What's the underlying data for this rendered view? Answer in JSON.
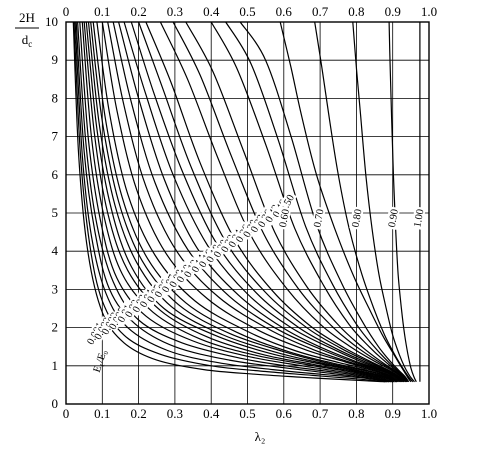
{
  "chart_data": {
    "type": "line",
    "title": "",
    "xlabel": "λ₂",
    "ylabel": "2H",
    "ylabel_denominator": "d_c",
    "xlim": [
      0,
      1.0
    ],
    "ylim": [
      0,
      10
    ],
    "grid": true,
    "x_ticks": [
      "0",
      "0.1",
      "0.2",
      "0.3",
      "0.4",
      "0.5",
      "0.6",
      "0.7",
      "0.8",
      "0.9",
      "1.0"
    ],
    "x_ticks_top": [
      "0",
      "0.1",
      "0.2",
      "0.3",
      "0.4",
      "0.5",
      "0.6",
      "0.7",
      "0.8",
      "0.9",
      "1.0"
    ],
    "y_ticks": [
      "0",
      "1",
      "2",
      "3",
      "4",
      "5",
      "6",
      "7",
      "8",
      "9",
      "10"
    ],
    "curve_parameter": "E₁/E₀",
    "series": [
      {
        "name": "0.001",
        "x": [
          0.02,
          0.035,
          0.06,
          0.1,
          0.16,
          0.25,
          0.38,
          0.52,
          0.65,
          0.78,
          0.88
        ],
        "y": [
          10,
          6.5,
          4.0,
          2.4,
          1.6,
          1.15,
          0.9,
          0.78,
          0.7,
          0.63,
          0.58
        ]
      },
      {
        "name": "0.002",
        "x": [
          0.022,
          0.04,
          0.065,
          0.1,
          0.16,
          0.26,
          0.4,
          0.55,
          0.68,
          0.8,
          0.885
        ],
        "y": [
          10,
          6.5,
          4.2,
          2.7,
          1.8,
          1.3,
          1.0,
          0.85,
          0.75,
          0.66,
          0.58
        ]
      },
      {
        "name": "0.003",
        "x": [
          0.025,
          0.045,
          0.07,
          0.11,
          0.17,
          0.28,
          0.42,
          0.57,
          0.7,
          0.82,
          0.89
        ],
        "y": [
          10,
          6.5,
          4.4,
          2.9,
          2.0,
          1.4,
          1.08,
          0.9,
          0.78,
          0.68,
          0.58
        ]
      },
      {
        "name": "0.005",
        "x": [
          0.028,
          0.05,
          0.08,
          0.12,
          0.19,
          0.3,
          0.45,
          0.6,
          0.73,
          0.84,
          0.895
        ],
        "y": [
          10,
          6.6,
          4.5,
          3.0,
          2.1,
          1.5,
          1.15,
          0.95,
          0.8,
          0.68,
          0.58
        ]
      },
      {
        "name": "0.01",
        "x": [
          0.032,
          0.055,
          0.085,
          0.13,
          0.2,
          0.32,
          0.48,
          0.62,
          0.75,
          0.85,
          0.9
        ],
        "y": [
          10,
          6.8,
          4.7,
          3.2,
          2.2,
          1.6,
          1.2,
          0.98,
          0.82,
          0.69,
          0.58
        ]
      },
      {
        "name": "0.02",
        "x": [
          0.038,
          0.062,
          0.095,
          0.14,
          0.22,
          0.35,
          0.5,
          0.65,
          0.77,
          0.86,
          0.9
        ],
        "y": [
          10,
          6.9,
          4.8,
          3.3,
          2.3,
          1.65,
          1.25,
          1.0,
          0.83,
          0.7,
          0.58
        ]
      },
      {
        "name": "0.03",
        "x": [
          0.045,
          0.07,
          0.105,
          0.155,
          0.24,
          0.37,
          0.52,
          0.67,
          0.78,
          0.87,
          0.905
        ],
        "y": [
          10,
          7.0,
          4.9,
          3.4,
          2.4,
          1.7,
          1.28,
          1.02,
          0.85,
          0.7,
          0.58
        ]
      },
      {
        "name": "0.04",
        "x": [
          0.05,
          0.078,
          0.115,
          0.17,
          0.26,
          0.39,
          0.54,
          0.68,
          0.79,
          0.875,
          0.905
        ],
        "y": [
          10,
          7.1,
          5.0,
          3.5,
          2.45,
          1.75,
          1.3,
          1.04,
          0.86,
          0.71,
          0.58
        ]
      },
      {
        "name": "0.05",
        "x": [
          0.056,
          0.085,
          0.125,
          0.18,
          0.27,
          0.41,
          0.56,
          0.7,
          0.8,
          0.88,
          0.91
        ],
        "y": [
          10,
          7.2,
          5.1,
          3.6,
          2.5,
          1.8,
          1.33,
          1.05,
          0.87,
          0.71,
          0.58
        ]
      },
      {
        "name": "0.06",
        "x": [
          0.062,
          0.092,
          0.135,
          0.195,
          0.29,
          0.43,
          0.58,
          0.71,
          0.81,
          0.885,
          0.91
        ],
        "y": [
          10,
          7.3,
          5.2,
          3.7,
          2.55,
          1.82,
          1.35,
          1.06,
          0.87,
          0.71,
          0.58
        ]
      },
      {
        "name": "0.07",
        "x": [
          0.068,
          0.1,
          0.145,
          0.21,
          0.31,
          0.45,
          0.6,
          0.72,
          0.82,
          0.89,
          0.91
        ],
        "y": [
          10,
          7.4,
          5.3,
          3.75,
          2.6,
          1.85,
          1.37,
          1.07,
          0.88,
          0.72,
          0.58
        ]
      },
      {
        "name": "0.08",
        "x": [
          0.075,
          0.108,
          0.155,
          0.225,
          0.33,
          0.47,
          0.61,
          0.73,
          0.83,
          0.89,
          0.912
        ],
        "y": [
          10,
          7.5,
          5.4,
          3.8,
          2.65,
          1.88,
          1.38,
          1.08,
          0.88,
          0.72,
          0.58
        ]
      },
      {
        "name": "0.10",
        "x": [
          0.085,
          0.12,
          0.17,
          0.245,
          0.355,
          0.5,
          0.63,
          0.75,
          0.84,
          0.895,
          0.915
        ],
        "y": [
          10,
          7.6,
          5.5,
          3.9,
          2.7,
          1.9,
          1.4,
          1.09,
          0.89,
          0.72,
          0.58
        ]
      },
      {
        "name": "0.12",
        "x": [
          0.1,
          0.14,
          0.195,
          0.275,
          0.39,
          0.53,
          0.66,
          0.77,
          0.85,
          0.9,
          0.918
        ],
        "y": [
          10,
          7.7,
          5.6,
          3.95,
          2.75,
          1.93,
          1.42,
          1.1,
          0.89,
          0.72,
          0.58
        ]
      },
      {
        "name": "0.14",
        "x": [
          0.115,
          0.16,
          0.22,
          0.305,
          0.42,
          0.56,
          0.68,
          0.78,
          0.86,
          0.905,
          0.92
        ],
        "y": [
          10,
          7.8,
          5.7,
          4.0,
          2.8,
          1.95,
          1.43,
          1.1,
          0.89,
          0.72,
          0.58
        ]
      },
      {
        "name": "0.16",
        "x": [
          0.13,
          0.18,
          0.245,
          0.335,
          0.45,
          0.58,
          0.7,
          0.79,
          0.865,
          0.907,
          0.922
        ],
        "y": [
          10,
          7.9,
          5.8,
          4.05,
          2.82,
          1.97,
          1.44,
          1.11,
          0.89,
          0.72,
          0.58
        ]
      },
      {
        "name": "0.18",
        "x": [
          0.145,
          0.2,
          0.27,
          0.36,
          0.475,
          0.6,
          0.71,
          0.8,
          0.87,
          0.91,
          0.924
        ],
        "y": [
          10,
          8.0,
          5.9,
          4.1,
          2.85,
          1.98,
          1.45,
          1.11,
          0.89,
          0.72,
          0.58
        ]
      },
      {
        "name": "0.20",
        "x": [
          0.16,
          0.22,
          0.295,
          0.39,
          0.5,
          0.62,
          0.73,
          0.81,
          0.875,
          0.912,
          0.926
        ],
        "y": [
          10,
          8.1,
          6.0,
          4.15,
          2.88,
          2.0,
          1.46,
          1.12,
          0.89,
          0.72,
          0.58
        ]
      },
      {
        "name": "0.22",
        "x": [
          0.18,
          0.24,
          0.32,
          0.415,
          0.525,
          0.64,
          0.74,
          0.82,
          0.88,
          0.914,
          0.928
        ],
        "y": [
          10,
          8.2,
          6.1,
          4.2,
          2.9,
          2.01,
          1.47,
          1.12,
          0.89,
          0.72,
          0.58
        ]
      },
      {
        "name": "0.24",
        "x": [
          0.2,
          0.265,
          0.345,
          0.44,
          0.55,
          0.66,
          0.755,
          0.83,
          0.885,
          0.916,
          0.93
        ],
        "y": [
          10,
          8.3,
          6.2,
          4.25,
          2.92,
          2.02,
          1.47,
          1.12,
          0.89,
          0.72,
          0.58
        ]
      },
      {
        "name": "0.26",
        "x": [
          0.22,
          0.29,
          0.37,
          0.465,
          0.57,
          0.675,
          0.765,
          0.835,
          0.888,
          0.918,
          0.932
        ],
        "y": [
          10,
          8.4,
          6.3,
          4.3,
          2.95,
          2.03,
          1.48,
          1.13,
          0.89,
          0.72,
          0.58
        ]
      },
      {
        "name": "0.30",
        "x": [
          0.26,
          0.335,
          0.42,
          0.51,
          0.61,
          0.705,
          0.785,
          0.848,
          0.895,
          0.922,
          0.935
        ],
        "y": [
          10,
          8.5,
          6.4,
          4.4,
          3.0,
          2.05,
          1.49,
          1.13,
          0.89,
          0.72,
          0.58
        ]
      },
      {
        "name": "0.33",
        "x": [
          0.295,
          0.37,
          0.455,
          0.545,
          0.64,
          0.73,
          0.8,
          0.857,
          0.9,
          0.925,
          0.937
        ],
        "y": [
          10,
          8.6,
          6.5,
          4.45,
          3.02,
          2.06,
          1.5,
          1.13,
          0.89,
          0.72,
          0.58
        ]
      },
      {
        "name": "0.36",
        "x": [
          0.33,
          0.405,
          0.49,
          0.575,
          0.665,
          0.75,
          0.815,
          0.865,
          0.903,
          0.927,
          0.938
        ],
        "y": [
          10,
          8.7,
          6.6,
          4.5,
          3.05,
          2.07,
          1.5,
          1.13,
          0.89,
          0.72,
          0.58
        ]
      },
      {
        "name": "0.42",
        "x": [
          0.4,
          0.47,
          0.55,
          0.63,
          0.71,
          0.78,
          0.835,
          0.877,
          0.908,
          0.93,
          0.94
        ],
        "y": [
          10,
          8.8,
          6.8,
          4.6,
          3.1,
          2.08,
          1.5,
          1.13,
          0.89,
          0.72,
          0.58
        ]
      },
      {
        "name": "0.46",
        "x": [
          0.44,
          0.51,
          0.585,
          0.66,
          0.735,
          0.8,
          0.848,
          0.885,
          0.912,
          0.932,
          0.942
        ],
        "y": [
          10,
          8.9,
          6.9,
          4.65,
          3.12,
          2.09,
          1.51,
          1.13,
          0.89,
          0.72,
          0.58
        ]
      },
      {
        "name": "0.50",
        "x": [
          0.48,
          0.55,
          0.62,
          0.69,
          0.76,
          0.82,
          0.86,
          0.892,
          0.916,
          0.934,
          0.944
        ],
        "y": [
          10,
          9.0,
          7.0,
          4.7,
          3.15,
          2.1,
          1.51,
          1.13,
          0.89,
          0.72,
          0.58
        ]
      },
      {
        "name": "0.60",
        "x": [
          0.59,
          0.62,
          0.65,
          0.69,
          0.74,
          0.79,
          0.835,
          0.872,
          0.903,
          0.925,
          0.94,
          0.95
        ],
        "y": [
          10,
          8.8,
          7.5,
          6.0,
          4.6,
          3.4,
          2.5,
          1.8,
          1.3,
          0.95,
          0.72,
          0.58
        ]
      },
      {
        "name": "0.70",
        "x": [
          0.685,
          0.705,
          0.725,
          0.75,
          0.78,
          0.815,
          0.848,
          0.878,
          0.905,
          0.927,
          0.943,
          0.955
        ],
        "y": [
          10,
          8.8,
          7.5,
          6.0,
          4.6,
          3.4,
          2.5,
          1.8,
          1.3,
          0.95,
          0.72,
          0.58
        ]
      },
      {
        "name": "0.80",
        "x": [
          0.79,
          0.8,
          0.812,
          0.826,
          0.843,
          0.862,
          0.882,
          0.9,
          0.918,
          0.934,
          0.948,
          0.96
        ],
        "y": [
          10,
          8.8,
          7.5,
          6.0,
          4.6,
          3.4,
          2.5,
          1.8,
          1.3,
          0.95,
          0.72,
          0.58
        ]
      },
      {
        "name": "0.90",
        "x": [
          0.89,
          0.893,
          0.897,
          0.902,
          0.908,
          0.915,
          0.924,
          0.933,
          0.942,
          0.95,
          0.958,
          0.965
        ],
        "y": [
          10,
          8.8,
          7.5,
          6.0,
          4.6,
          3.4,
          2.5,
          1.8,
          1.3,
          0.95,
          0.72,
          0.58
        ]
      },
      {
        "name": "1.00",
        "x": [
          0.975,
          0.975,
          0.975,
          0.975,
          0.975,
          0.975,
          0.975,
          0.975,
          0.975,
          0.975,
          0.975,
          0.975
        ],
        "y": [
          10,
          8.8,
          7.5,
          6.0,
          4.6,
          3.4,
          2.5,
          1.8,
          1.3,
          0.95,
          0.72,
          0.58
        ]
      }
    ]
  }
}
